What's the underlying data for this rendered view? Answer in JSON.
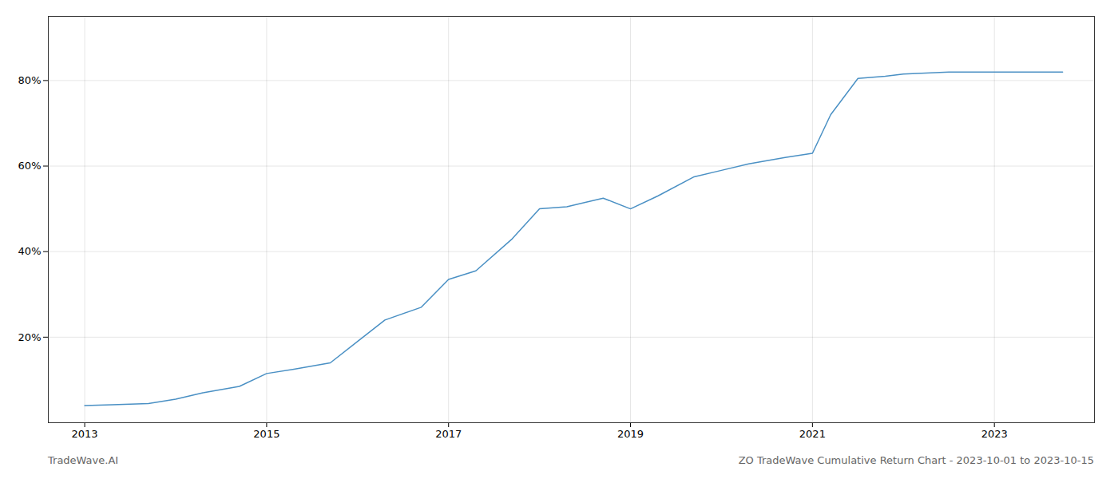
{
  "chart_data": {
    "type": "line",
    "title": "ZO TradeWave Cumulative Return Chart - 2023-10-01 to 2023-10-15",
    "annotations": [
      "TradeWave.AI"
    ],
    "color": "#4a90c4",
    "x": [
      2013.0,
      2013.3,
      2013.7,
      2014.0,
      2014.3,
      2014.7,
      2015.0,
      2015.3,
      2015.7,
      2016.0,
      2016.3,
      2016.7,
      2017.0,
      2017.3,
      2017.7,
      2018.0,
      2018.3,
      2018.7,
      2019.0,
      2019.3,
      2019.7,
      2020.0,
      2020.3,
      2020.7,
      2021.0,
      2021.2,
      2021.5,
      2021.8,
      2022.0,
      2022.5,
      2023.0,
      2023.75
    ],
    "values": [
      4.0,
      4.2,
      4.5,
      5.5,
      7.0,
      8.5,
      11.5,
      12.5,
      14.0,
      19.0,
      24.0,
      27.0,
      33.5,
      35.5,
      43.0,
      50.0,
      50.5,
      52.5,
      50.0,
      53.0,
      57.5,
      59.0,
      60.5,
      62.0,
      63.0,
      72.0,
      80.5,
      81.0,
      81.5,
      82.0,
      82.0,
      82.0
    ],
    "xlim": [
      2012.6,
      2024.1
    ],
    "ylim": [
      0,
      95
    ],
    "xticks": [
      2013,
      2015,
      2017,
      2019,
      2021,
      2023
    ],
    "yticks": [
      {
        "value": 20,
        "label": "20%"
      },
      {
        "value": 40,
        "label": "40%"
      },
      {
        "value": 60,
        "label": "60%"
      },
      {
        "value": 80,
        "label": "80%"
      }
    ],
    "grid": true
  }
}
